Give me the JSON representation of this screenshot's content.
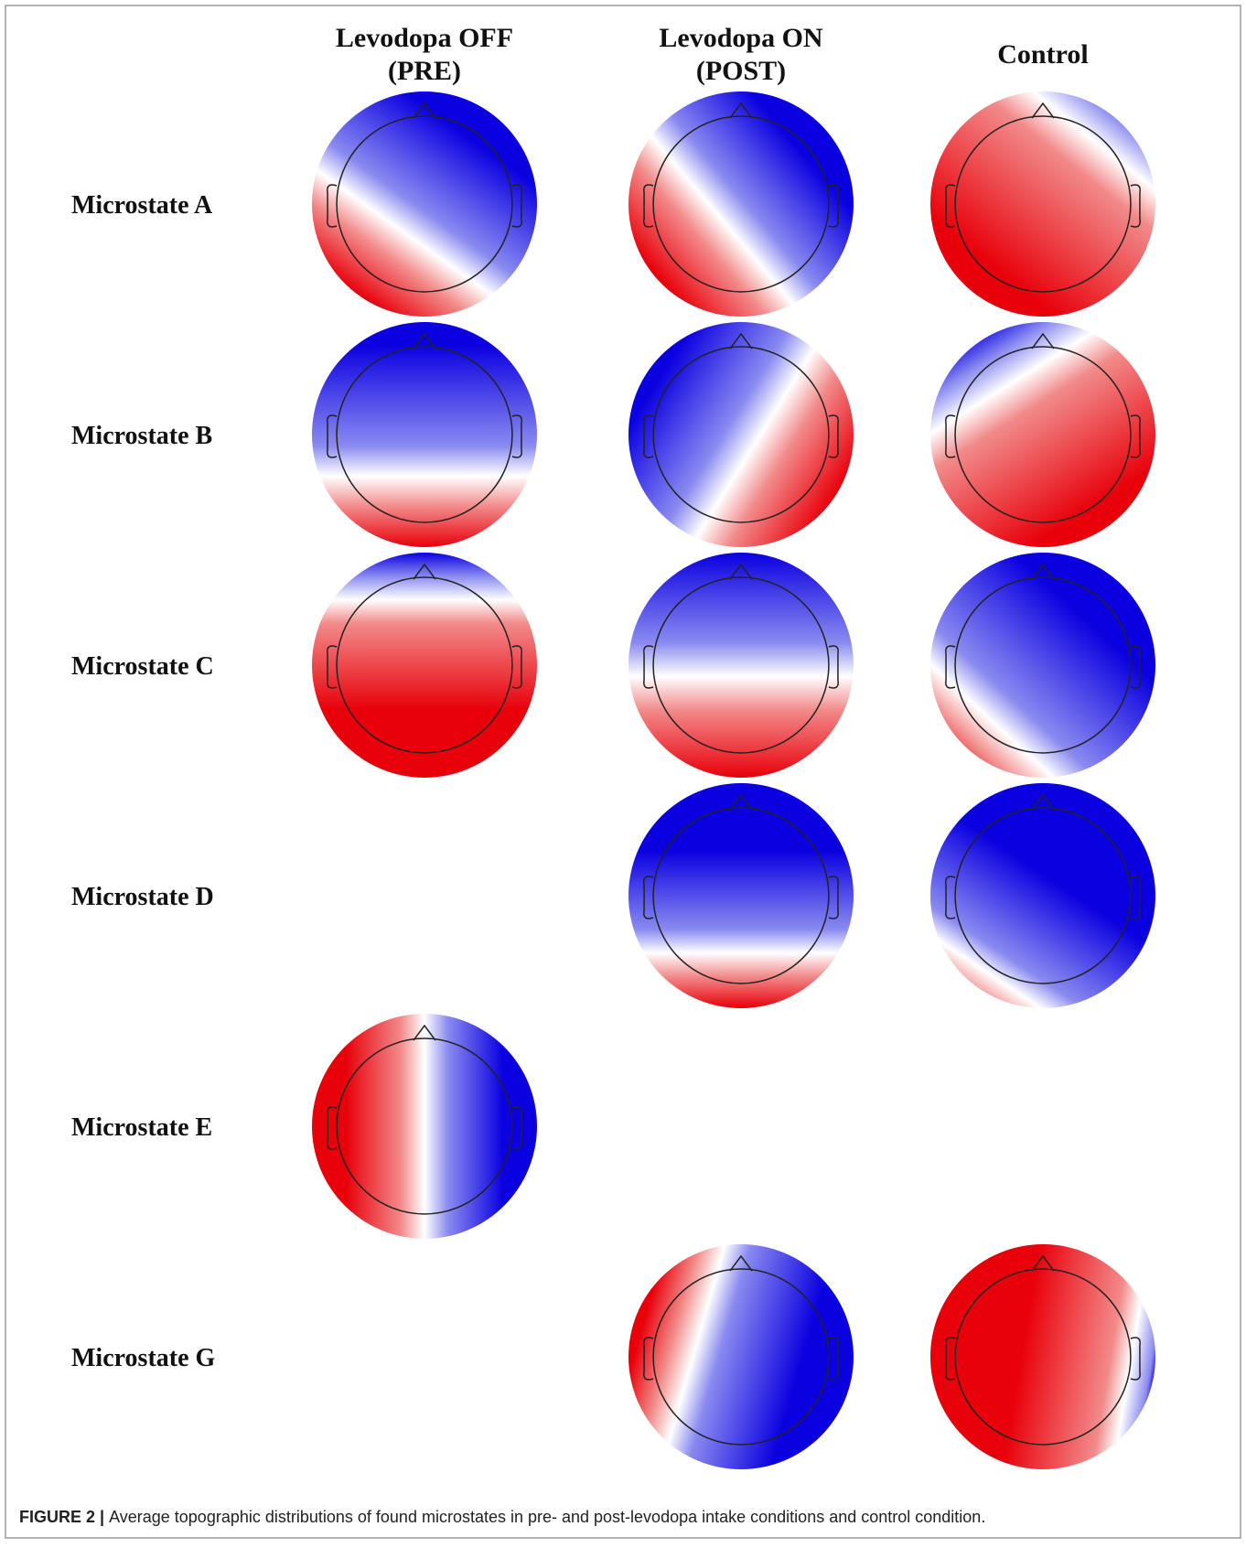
{
  "figure": {
    "columns": [
      {
        "lines": [
          "Levodopa OFF",
          "(PRE)"
        ]
      },
      {
        "lines": [
          "Levodopa ON",
          "(POST)"
        ]
      },
      {
        "lines": [
          "Control"
        ]
      }
    ],
    "rows": [
      {
        "label": "Microstate A",
        "maps": [
          true,
          true,
          true
        ]
      },
      {
        "label": "Microstate B",
        "maps": [
          true,
          true,
          true
        ]
      },
      {
        "label": "Microstate C",
        "maps": [
          true,
          true,
          true
        ]
      },
      {
        "label": "Microstate D",
        "maps": [
          false,
          true,
          true
        ]
      },
      {
        "label": "Microstate E",
        "maps": [
          true,
          false,
          false
        ]
      },
      {
        "label": "Microstate G",
        "maps": [
          false,
          true,
          true
        ]
      }
    ],
    "caption": {
      "label": "FIGURE 2 |",
      "text": "Average topographic distributions of found microstates in pre- and post-levodopa intake conditions and control condition."
    }
  }
}
